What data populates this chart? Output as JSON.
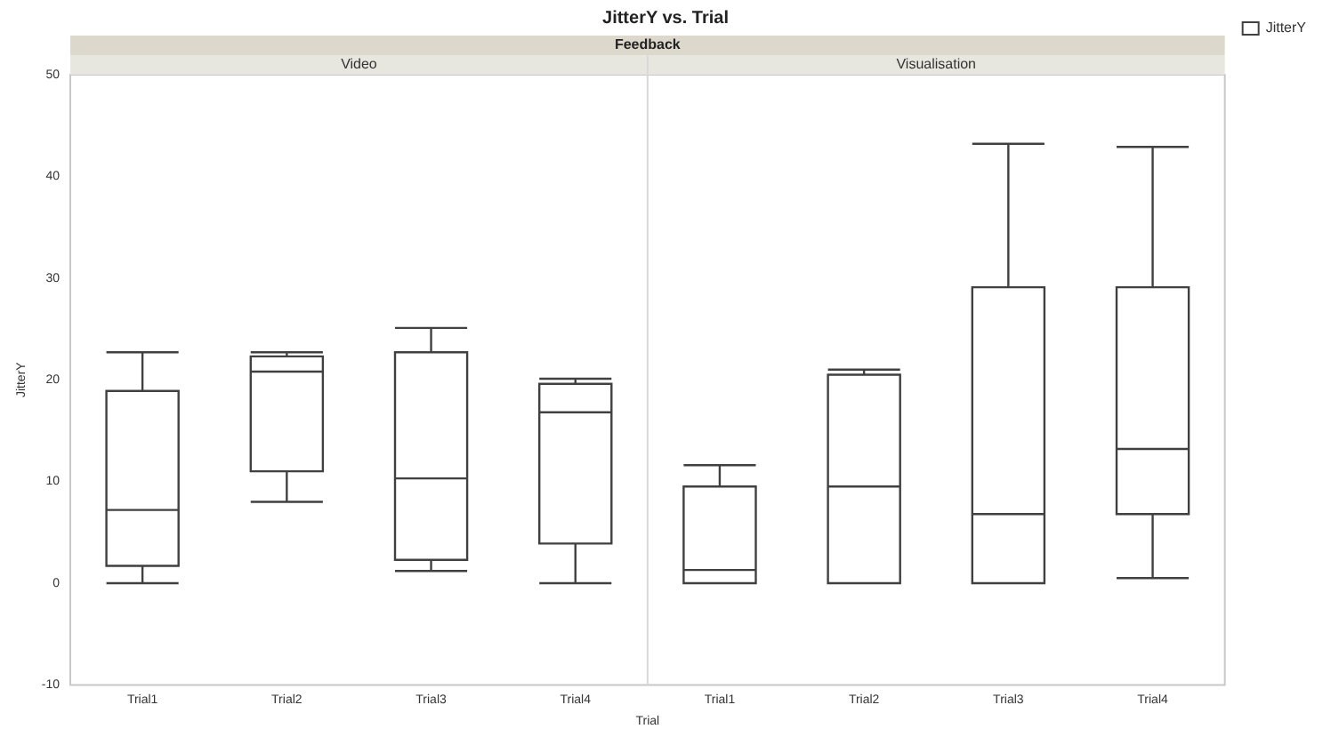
{
  "chart_data": {
    "type": "box",
    "title": "JitterY vs. Trial",
    "subtitle": "Feedback",
    "xlabel": "Trial",
    "ylabel": "JitterY",
    "annotations": [
      "Video",
      "Visualisation"
    ],
    "categories": [
      "Trial1",
      "Trial2",
      "Trial3",
      "Trial4",
      "Trial1",
      "Trial2",
      "Trial3",
      "Trial4"
    ],
    "series": [
      {
        "name": "JitterY",
        "color": "#404040",
        "boxes": [
          {
            "low": 0,
            "q1": 1.7,
            "median": 7.2,
            "q3": 18.9,
            "high": 22.7
          },
          {
            "low": 8,
            "q1": 11,
            "median": 20.8,
            "q3": 22.3,
            "high": 22.7
          },
          {
            "low": 1.2,
            "q1": 2.3,
            "median": 10.3,
            "q3": 22.7,
            "high": 25.1
          },
          {
            "low": 0,
            "q1": 3.9,
            "median": 16.8,
            "q3": 19.6,
            "high": 20.1
          },
          {
            "low": 0,
            "q1": 0,
            "median": 1.3,
            "q3": 9.5,
            "high": 11.6
          },
          {
            "low": 0,
            "q1": 0,
            "median": 9.5,
            "q3": 20.5,
            "high": 21
          },
          {
            "low": 0,
            "q1": 0,
            "median": 6.8,
            "q3": 29.1,
            "high": 43.2
          },
          {
            "low": 0.5,
            "q1": 6.8,
            "median": 13.2,
            "q3": 29.1,
            "high": 42.9
          }
        ]
      }
    ],
    "ylim": [
      -10,
      50
    ],
    "yticks": [
      -10,
      0,
      10,
      20,
      30,
      40,
      50
    ],
    "legend": "top right"
  }
}
